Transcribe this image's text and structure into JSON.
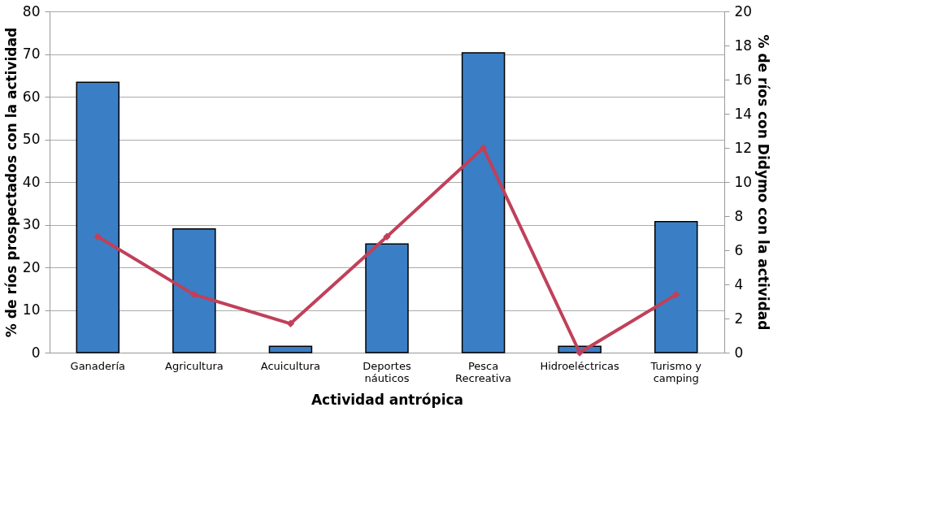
{
  "chart_data": {
    "type": "bar",
    "xlabel": "Actividad antrópica",
    "ylabel": "% de ríos prospectados con la actividad",
    "y2label": "% de ríos con Didymo con la actividad",
    "categories": [
      "Ganadería",
      "Agricultura",
      "Acuicultura",
      "Deportes\nnáuticos",
      "Pesca\nRecreativa",
      "Hidroeléctricas",
      "Turismo y\ncamping"
    ],
    "series": [
      {
        "color": "#3a7ec6",
        "values": [
          63.4,
          29.0,
          1.5,
          25.5,
          70.3,
          1.5,
          30.7
        ]
      },
      {
        "type": "line",
        "axis": "y2",
        "color": "#c0405a",
        "marker": "diamond",
        "values": [
          6.8,
          3.4,
          1.7,
          6.8,
          12.0,
          0.0,
          3.4
        ]
      }
    ],
    "ylim": [
      0,
      80
    ],
    "yticks": [
      0,
      10,
      20,
      30,
      40,
      50,
      60,
      70,
      80
    ],
    "y2lim": [
      0,
      20
    ],
    "y2ticks": [
      0,
      2,
      4,
      6,
      8,
      10,
      12,
      14,
      16,
      18,
      20
    ],
    "grid": "y"
  }
}
